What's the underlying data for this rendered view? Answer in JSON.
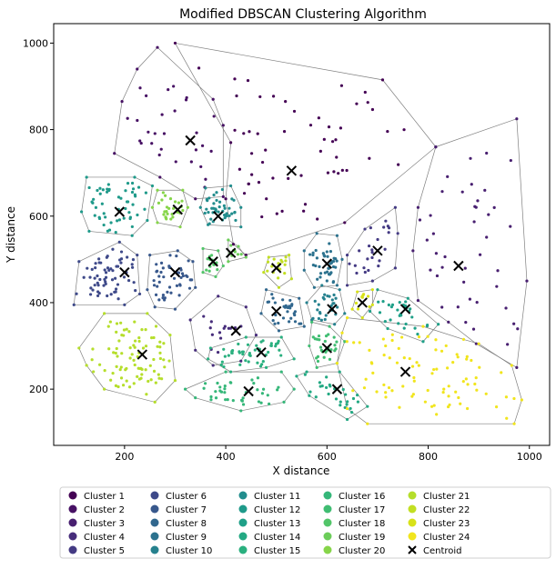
{
  "chart_data": {
    "type": "scatter",
    "title": "Modified DBSCAN Clustering Algorithm",
    "xlabel": "X distance",
    "ylabel": "Y distance",
    "xlim": [
      60,
      1040
    ],
    "ylim": [
      70,
      1045
    ],
    "xticks": [
      200,
      400,
      600,
      800,
      1000
    ],
    "yticks": [
      200,
      400,
      600,
      800,
      1000
    ],
    "grid": false,
    "legend_position": "below",
    "centroid_label": "Centroid",
    "clusters": [
      {
        "name": "Cluster 1",
        "color": "#440154",
        "centroid": [
          530,
          705
        ],
        "hull": [
          [
            300,
            1000
          ],
          [
            710,
            915
          ],
          [
            815,
            760
          ],
          [
            635,
            585
          ],
          [
            440,
            510
          ],
          [
            415,
            535
          ],
          [
            400,
            640
          ],
          [
            410,
            770
          ]
        ],
        "n": 55,
        "seed": 11
      },
      {
        "name": "Cluster 2",
        "color": "#471164",
        "centroid": [
          330,
          775
        ],
        "hull": [
          [
            265,
            990
          ],
          [
            375,
            870
          ],
          [
            395,
            810
          ],
          [
            395,
            645
          ],
          [
            340,
            640
          ],
          [
            270,
            690
          ],
          [
            180,
            745
          ],
          [
            195,
            865
          ],
          [
            225,
            940
          ]
        ],
        "n": 28,
        "seed": 12
      },
      {
        "name": "Cluster 3",
        "color": "#481f70",
        "centroid": [
          860,
          485
        ],
        "hull": [
          [
            815,
            760
          ],
          [
            975,
            825
          ],
          [
            995,
            450
          ],
          [
            975,
            250
          ],
          [
            895,
            305
          ],
          [
            840,
            355
          ],
          [
            780,
            405
          ],
          [
            770,
            520
          ],
          [
            780,
            620
          ]
        ],
        "n": 40,
        "seed": 13
      },
      {
        "name": "Cluster 4",
        "color": "#472d7b",
        "centroid": [
          420,
          335
        ],
        "hull": [
          [
            385,
            415
          ],
          [
            440,
            390
          ],
          [
            460,
            325
          ],
          [
            430,
            265
          ],
          [
            375,
            255
          ],
          [
            340,
            290
          ],
          [
            330,
            360
          ]
        ],
        "n": 14,
        "seed": 14
      },
      {
        "name": "Cluster 5",
        "color": "#443a83",
        "centroid": [
          700,
          520
        ],
        "hull": [
          [
            675,
            570
          ],
          [
            735,
            620
          ],
          [
            740,
            560
          ],
          [
            735,
            480
          ],
          [
            690,
            450
          ],
          [
            640,
            440
          ],
          [
            640,
            510
          ]
        ],
        "n": 22,
        "seed": 15
      },
      {
        "name": "Cluster 6",
        "color": "#3e4989",
        "centroid": [
          200,
          470
        ],
        "hull": [
          [
            110,
            495
          ],
          [
            190,
            540
          ],
          [
            225,
            510
          ],
          [
            230,
            420
          ],
          [
            200,
            395
          ],
          [
            100,
            395
          ]
        ],
        "n": 60,
        "seed": 16
      },
      {
        "name": "Cluster 7",
        "color": "#38588c",
        "centroid": [
          300,
          470
        ],
        "hull": [
          [
            250,
            510
          ],
          [
            305,
            520
          ],
          [
            335,
            495
          ],
          [
            340,
            435
          ],
          [
            300,
            385
          ],
          [
            260,
            390
          ],
          [
            245,
            430
          ]
        ],
        "n": 45,
        "seed": 17
      },
      {
        "name": "Cluster 8",
        "color": "#31678e",
        "centroid": [
          500,
          380
        ],
        "hull": [
          [
            480,
            430
          ],
          [
            545,
            410
          ],
          [
            555,
            345
          ],
          [
            505,
            335
          ],
          [
            470,
            375
          ]
        ],
        "n": 30,
        "seed": 18
      },
      {
        "name": "Cluster 9",
        "color": "#2c728e",
        "centroid": [
          600,
          490
        ],
        "hull": [
          [
            580,
            560
          ],
          [
            620,
            555
          ],
          [
            630,
            500
          ],
          [
            620,
            440
          ],
          [
            575,
            435
          ],
          [
            555,
            475
          ],
          [
            555,
            520
          ]
        ],
        "n": 38,
        "seed": 19
      },
      {
        "name": "Cluster 10",
        "color": "#26818e",
        "centroid": [
          610,
          385
        ],
        "hull": [
          [
            590,
            440
          ],
          [
            625,
            430
          ],
          [
            635,
            375
          ],
          [
            615,
            350
          ],
          [
            570,
            360
          ],
          [
            560,
            400
          ]
        ],
        "n": 25,
        "seed": 20
      },
      {
        "name": "Cluster 11",
        "color": "#228d8d",
        "centroid": [
          385,
          600
        ],
        "hull": [
          [
            360,
            665
          ],
          [
            410,
            670
          ],
          [
            430,
            620
          ],
          [
            430,
            575
          ],
          [
            365,
            580
          ],
          [
            350,
            620
          ]
        ],
        "n": 40,
        "seed": 21
      },
      {
        "name": "Cluster 12",
        "color": "#1f9a8a",
        "centroid": [
          190,
          610
        ],
        "hull": [
          [
            125,
            690
          ],
          [
            220,
            690
          ],
          [
            255,
            670
          ],
          [
            245,
            590
          ],
          [
            215,
            555
          ],
          [
            130,
            565
          ],
          [
            115,
            610
          ]
        ],
        "n": 50,
        "seed": 22
      },
      {
        "name": "Cluster 13",
        "color": "#1fa088",
        "centroid": [
          755,
          385
        ],
        "hull": [
          [
            700,
            430
          ],
          [
            760,
            410
          ],
          [
            820,
            350
          ],
          [
            790,
            310
          ],
          [
            720,
            340
          ],
          [
            685,
            380
          ]
        ],
        "n": 28,
        "seed": 23
      },
      {
        "name": "Cluster 14",
        "color": "#23a983",
        "centroid": [
          620,
          200
        ],
        "hull": [
          [
            560,
            240
          ],
          [
            625,
            240
          ],
          [
            680,
            160
          ],
          [
            640,
            130
          ],
          [
            565,
            185
          ],
          [
            540,
            230
          ]
        ],
        "n": 25,
        "seed": 24
      },
      {
        "name": "Cluster 15",
        "color": "#2ab07f",
        "centroid": [
          470,
          285
        ],
        "hull": [
          [
            370,
            295
          ],
          [
            440,
            320
          ],
          [
            510,
            320
          ],
          [
            535,
            270
          ],
          [
            480,
            250
          ],
          [
            410,
            240
          ],
          [
            365,
            270
          ]
        ],
        "n": 45,
        "seed": 25
      },
      {
        "name": "Cluster 16",
        "color": "#35b779",
        "centroid": [
          445,
          195
        ],
        "hull": [
          [
            320,
            200
          ],
          [
            400,
            240
          ],
          [
            510,
            240
          ],
          [
            535,
            200
          ],
          [
            515,
            170
          ],
          [
            430,
            150
          ],
          [
            340,
            180
          ]
        ],
        "n": 35,
        "seed": 26
      },
      {
        "name": "Cluster 17",
        "color": "#40bd72",
        "centroid": [
          600,
          295
        ],
        "hull": [
          [
            570,
            355
          ],
          [
            605,
            345
          ],
          [
            635,
            310
          ],
          [
            620,
            260
          ],
          [
            580,
            250
          ],
          [
            565,
            300
          ]
        ],
        "n": 25,
        "seed": 27
      },
      {
        "name": "Cluster 18",
        "color": "#52c569",
        "centroid": [
          375,
          495
        ],
        "hull": [
          [
            355,
            525
          ],
          [
            385,
            520
          ],
          [
            395,
            485
          ],
          [
            380,
            460
          ],
          [
            355,
            470
          ]
        ],
        "n": 12,
        "seed": 28
      },
      {
        "name": "Cluster 19",
        "color": "#6ccd5a",
        "centroid": [
          410,
          515
        ],
        "hull": [
          [
            405,
            545
          ],
          [
            425,
            530
          ],
          [
            440,
            505
          ],
          [
            405,
            495
          ]
        ],
        "n": 8,
        "seed": 29
      },
      {
        "name": "Cluster 20",
        "color": "#86d549",
        "centroid": [
          305,
          615
        ],
        "hull": [
          [
            265,
            660
          ],
          [
            315,
            660
          ],
          [
            325,
            620
          ],
          [
            310,
            575
          ],
          [
            265,
            585
          ],
          [
            255,
            620
          ]
        ],
        "n": 25,
        "seed": 30
      },
      {
        "name": "Cluster 21",
        "color": "#b5de2b",
        "centroid": [
          235,
          280
        ],
        "hull": [
          [
            160,
            375
          ],
          [
            245,
            375
          ],
          [
            290,
            325
          ],
          [
            300,
            220
          ],
          [
            260,
            170
          ],
          [
            160,
            200
          ],
          [
            125,
            255
          ],
          [
            110,
            295
          ]
        ],
        "n": 85,
        "seed": 31
      },
      {
        "name": "Cluster 22",
        "color": "#c2df23",
        "centroid": [
          500,
          480
        ],
        "hull": [
          [
            485,
            505
          ],
          [
            525,
            510
          ],
          [
            530,
            455
          ],
          [
            505,
            435
          ],
          [
            475,
            470
          ]
        ],
        "n": 15,
        "seed": 32
      },
      {
        "name": "Cluster 23",
        "color": "#d8e219",
        "centroid": [
          670,
          400
        ],
        "hull": [
          [
            660,
            425
          ],
          [
            690,
            430
          ],
          [
            690,
            395
          ],
          [
            670,
            365
          ],
          [
            650,
            385
          ]
        ],
        "n": 8,
        "seed": 33
      },
      {
        "name": "Cluster 24",
        "color": "#f1e51d",
        "centroid": [
          755,
          240
        ],
        "hull": [
          [
            640,
            365
          ],
          [
            790,
            345
          ],
          [
            870,
            315
          ],
          [
            900,
            305
          ],
          [
            965,
            255
          ],
          [
            985,
            175
          ],
          [
            970,
            120
          ],
          [
            680,
            120
          ],
          [
            640,
            155
          ],
          [
            620,
            260
          ],
          [
            630,
            330
          ]
        ],
        "n": 80,
        "seed": 34
      }
    ]
  }
}
